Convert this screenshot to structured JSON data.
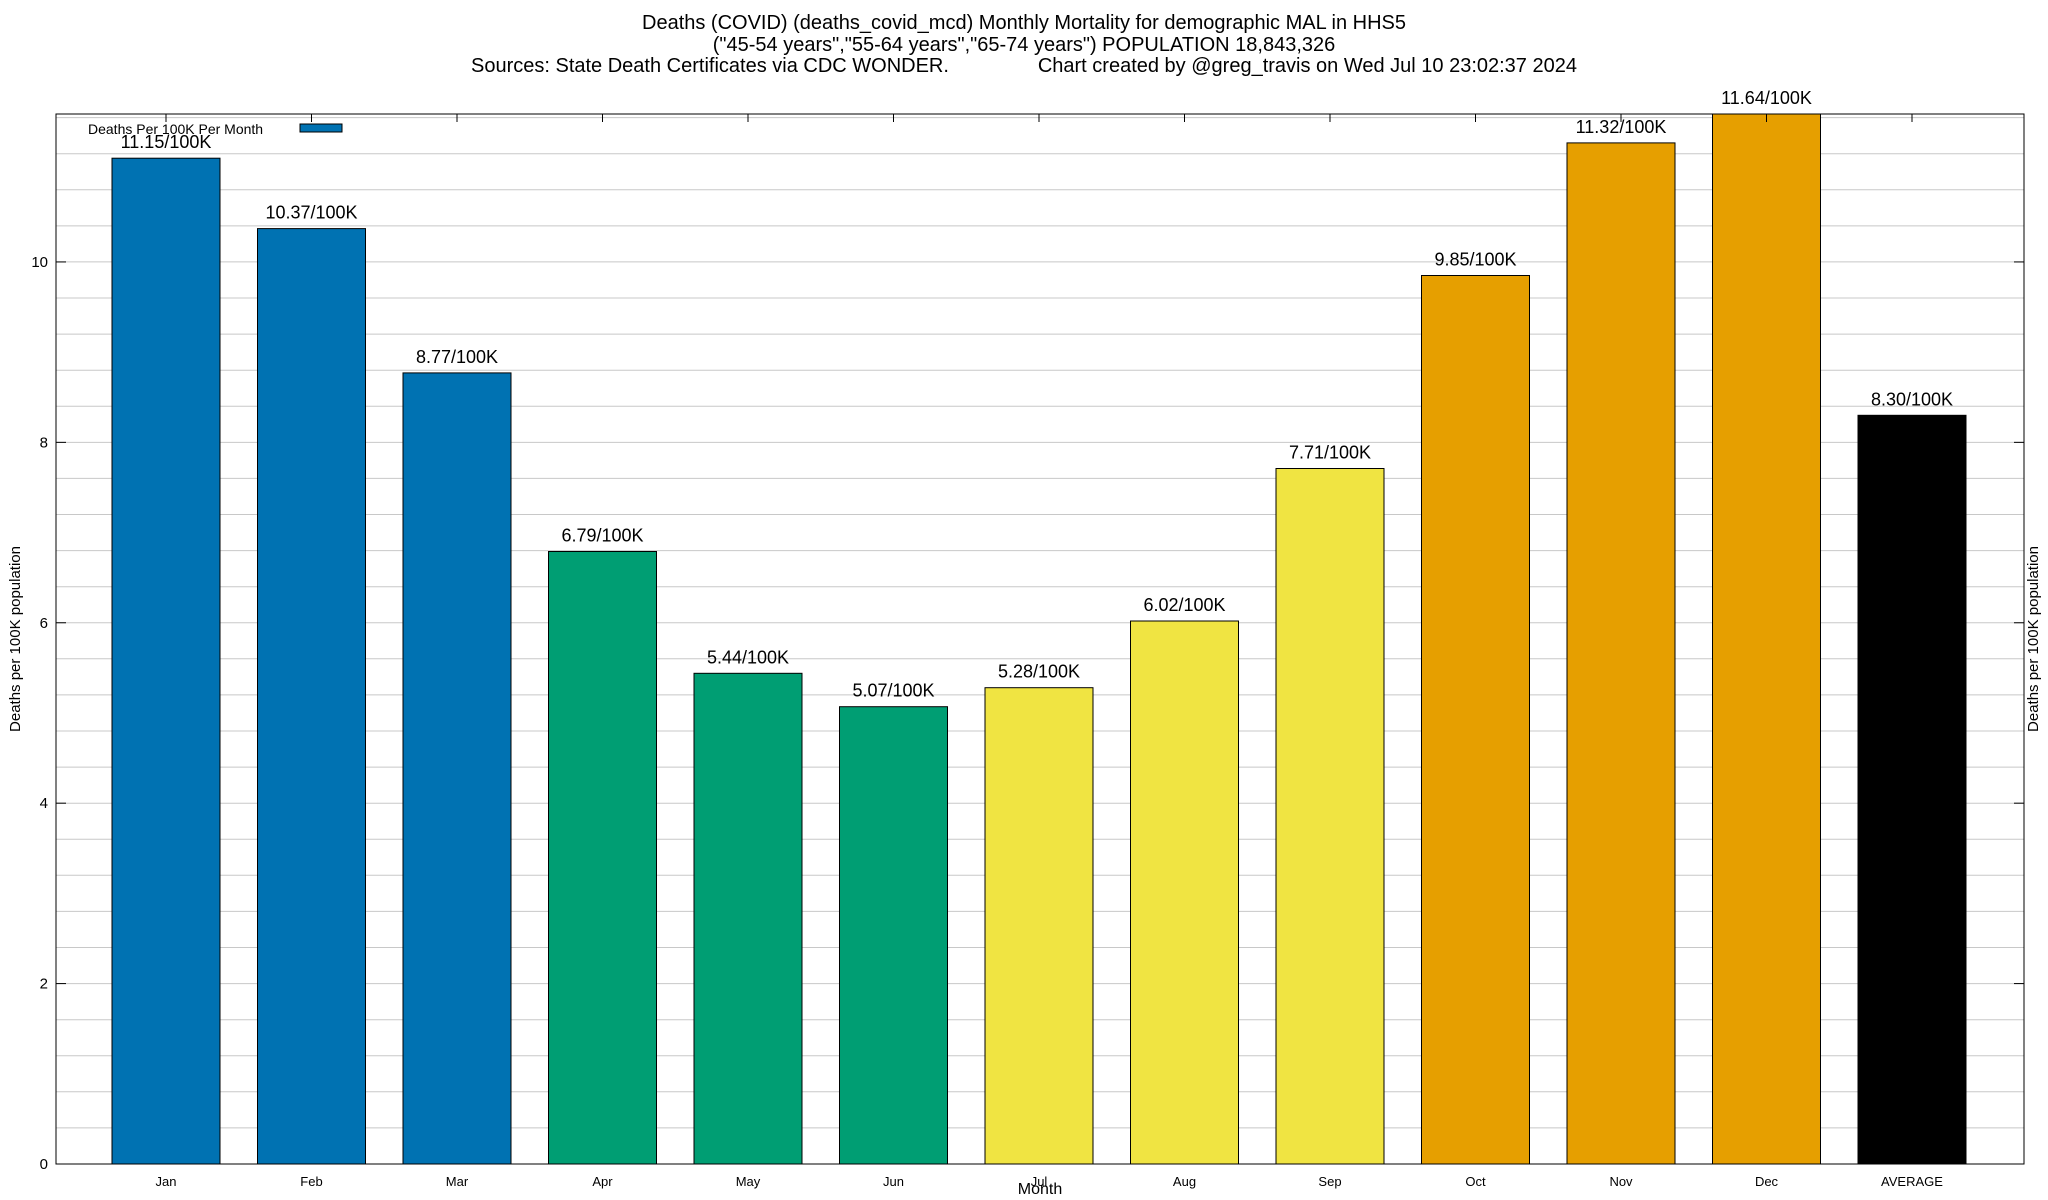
{
  "header": {
    "title_line1": "Deaths (COVID) (deaths_covid_mcd) Monthly Mortality for demographic MAL in HHS5",
    "title_line2": "(\"45-54 years\",\"55-64 years\",\"65-74 years\") POPULATION 18,843,326",
    "title_line3": "Sources: State Death Certificates via CDC WONDER.                Chart created by @greg_travis on Wed Jul 10 23:02:37 2024"
  },
  "chart_data": {
    "type": "bar",
    "categories": [
      "Jan",
      "Feb",
      "Mar",
      "Apr",
      "May",
      "Jun",
      "Jul",
      "Aug",
      "Sep",
      "Oct",
      "Nov",
      "Dec",
      "AVERAGE"
    ],
    "values": [
      11.15,
      10.37,
      8.77,
      6.79,
      5.44,
      5.07,
      5.28,
      6.02,
      7.71,
      9.85,
      11.32,
      11.64,
      8.3
    ],
    "value_labels": [
      "11.15/100K",
      "10.37/100K",
      "8.77/100K",
      "6.79/100K",
      "5.44/100K",
      "5.07/100K",
      "5.28/100K",
      "6.02/100K",
      "7.71/100K",
      "9.85/100K",
      "11.32/100K",
      "11.64/100K",
      "8.30/100K"
    ],
    "bar_colors": [
      "#0072b2",
      "#0072b2",
      "#0072b2",
      "#009e73",
      "#009e73",
      "#009e73",
      "#f0e442",
      "#f0e442",
      "#f0e442",
      "#e69f00",
      "#e69f00",
      "#e69f00",
      "#000000"
    ],
    "xlabel": "Month",
    "ylabel": "Deaths per 100K population",
    "ylabel_right": "Deaths per 100K population",
    "ylim": [
      0,
      11.64
    ],
    "yticks": [
      0,
      2,
      4,
      6,
      8,
      10
    ],
    "legend": {
      "label": "Deaths Per 100K Per Month",
      "color": "#0072b2",
      "position": "top-left"
    },
    "grid": true
  }
}
